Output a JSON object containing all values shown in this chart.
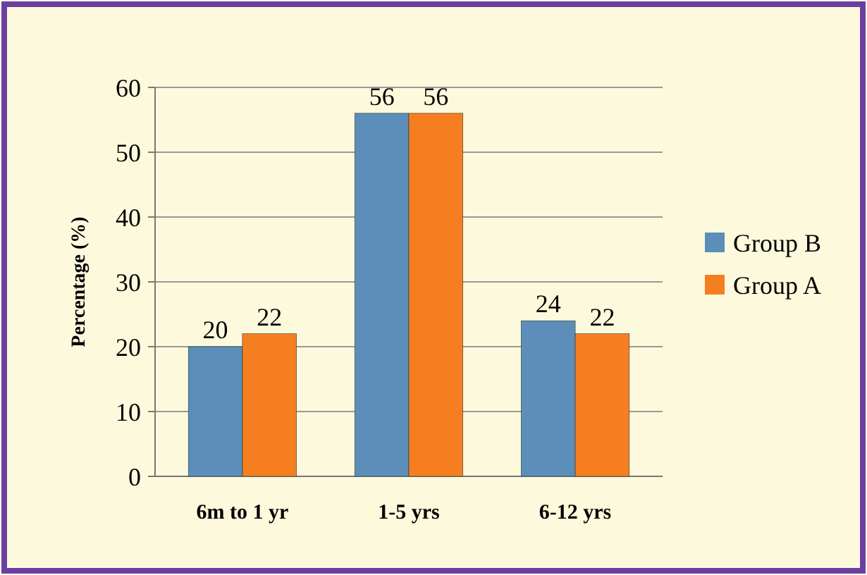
{
  "chart_data": {
    "type": "bar",
    "ylabel": "Percentage (%)",
    "categories": [
      "6m to 1 yr",
      "1-5 yrs",
      "6-12 yrs"
    ],
    "series": [
      {
        "name": "Group B",
        "color": "#5b8fba",
        "values": [
          20,
          56,
          24
        ]
      },
      {
        "name": "Group A",
        "color": "#f57f20",
        "values": [
          22,
          56,
          22
        ]
      }
    ],
    "ylim": [
      0,
      60
    ],
    "yticks": [
      0,
      10,
      20,
      30,
      40,
      50,
      60
    ],
    "grid": "y",
    "legend": "right",
    "data_labels": true
  }
}
